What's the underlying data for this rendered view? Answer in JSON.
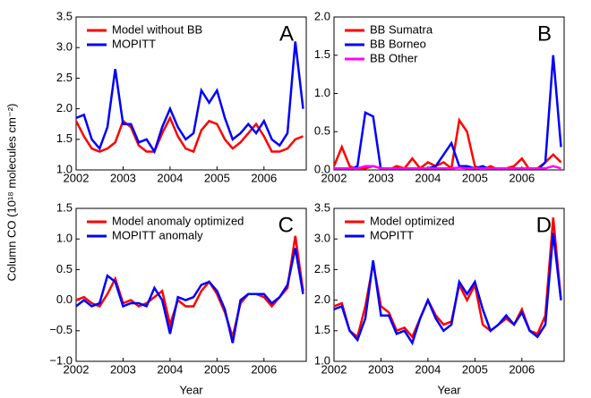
{
  "chart_data": [
    {
      "type": "line",
      "title": "A",
      "ylabel": "Column CO (10¹⁸ molecules cm⁻²)",
      "x": [
        2002,
        2002.167,
        2002.333,
        2002.5,
        2002.667,
        2002.833,
        2003,
        2003.167,
        2003.333,
        2003.5,
        2003.667,
        2003.833,
        2004,
        2004.167,
        2004.333,
        2004.5,
        2004.667,
        2004.833,
        2005,
        2005.167,
        2005.333,
        2005.5,
        2005.667,
        2005.833,
        2006,
        2006.167,
        2006.333,
        2006.5,
        2006.667,
        2006.833
      ],
      "series": [
        {
          "name": "Model without BB",
          "color": "#ff0000",
          "values": [
            1.8,
            1.55,
            1.35,
            1.3,
            1.35,
            1.45,
            1.8,
            1.7,
            1.4,
            1.3,
            1.3,
            1.6,
            1.85,
            1.55,
            1.35,
            1.3,
            1.65,
            1.8,
            1.75,
            1.5,
            1.35,
            1.45,
            1.6,
            1.75,
            1.55,
            1.3,
            1.3,
            1.35,
            1.5,
            1.55
          ]
        },
        {
          "name": "MOPITT",
          "color": "#0000ff",
          "values": [
            1.85,
            1.9,
            1.5,
            1.35,
            1.7,
            2.65,
            1.75,
            1.75,
            1.45,
            1.5,
            1.3,
            1.7,
            2.0,
            1.7,
            1.5,
            1.6,
            2.3,
            2.1,
            2.3,
            1.85,
            1.5,
            1.6,
            1.75,
            1.6,
            1.8,
            1.5,
            1.4,
            1.6,
            3.1,
            2.0
          ]
        }
      ],
      "xlim": [
        2002,
        2006.9
      ],
      "xticks": [
        2002,
        2003,
        2004,
        2005,
        2006
      ],
      "ylim": [
        1,
        3.5
      ],
      "yticks": [
        {
          "value": 1,
          "label": "1.0"
        },
        1.5,
        {
          "value": 2,
          "label": "2.0"
        },
        2.5,
        {
          "value": 3,
          "label": "3.0"
        },
        3.5
      ]
    },
    {
      "type": "line",
      "title": "B",
      "x": [
        2002,
        2002.167,
        2002.333,
        2002.5,
        2002.667,
        2002.833,
        2003,
        2003.167,
        2003.333,
        2003.5,
        2003.667,
        2003.833,
        2004,
        2004.167,
        2004.333,
        2004.5,
        2004.667,
        2004.833,
        2005,
        2005.167,
        2005.333,
        2005.5,
        2005.667,
        2005.833,
        2006,
        2006.167,
        2006.333,
        2006.5,
        2006.667,
        2006.833
      ],
      "series": [
        {
          "name": "BB Sumatra",
          "color": "#ff0000",
          "values": [
            0.05,
            0.3,
            0.05,
            0,
            0.02,
            0.05,
            0.02,
            0,
            0.05,
            0.02,
            0.15,
            0.02,
            0.1,
            0.05,
            0.1,
            0.02,
            0.65,
            0.5,
            0.05,
            0,
            0.05,
            0,
            0.02,
            0.05,
            0.15,
            0,
            0.02,
            0.1,
            0.2,
            0.1
          ]
        },
        {
          "name": "BB Borneo",
          "color": "#0000ff",
          "values": [
            0,
            0,
            0,
            0.05,
            0.75,
            0.7,
            0,
            0,
            0,
            0.02,
            0,
            0.02,
            0.02,
            0.05,
            0.2,
            0.35,
            0.05,
            0.05,
            0.02,
            0.05,
            0,
            0.02,
            0,
            0,
            0.02,
            0,
            0,
            0.1,
            1.5,
            0.3
          ]
        },
        {
          "name": "BB Other",
          "color": "#ff00ff",
          "values": [
            0.02,
            0.02,
            0.02,
            0.02,
            0.05,
            0.05,
            0.02,
            0.02,
            0.02,
            0.02,
            0.02,
            0.02,
            0.02,
            0.02,
            0.02,
            0.02,
            0.03,
            0.02,
            0.02,
            0.02,
            0.02,
            0.02,
            0.02,
            0.02,
            0.02,
            0.02,
            0.02,
            0.02,
            0.05,
            0.02
          ]
        }
      ],
      "xlim": [
        2002,
        2006.9
      ],
      "xticks": [
        2002,
        2003,
        2004,
        2005,
        2006
      ],
      "ylim": [
        0,
        2
      ],
      "yticks": [
        {
          "value": 0,
          "label": "0.0"
        },
        0.5,
        {
          "value": 1,
          "label": "1.0"
        },
        1.5,
        {
          "value": 2,
          "label": "2.0"
        }
      ]
    },
    {
      "type": "line",
      "title": "C",
      "xlabel": "Year",
      "x": [
        2002,
        2002.167,
        2002.333,
        2002.5,
        2002.667,
        2002.833,
        2003,
        2003.167,
        2003.333,
        2003.5,
        2003.667,
        2003.833,
        2004,
        2004.167,
        2004.333,
        2004.5,
        2004.667,
        2004.833,
        2005,
        2005.167,
        2005.333,
        2005.5,
        2005.667,
        2005.833,
        2006,
        2006.167,
        2006.333,
        2006.5,
        2006.667,
        2006.833
      ],
      "series": [
        {
          "name": "Model anomaly optimized",
          "color": "#ff0000",
          "values": [
            0,
            0.05,
            -0.05,
            -0.1,
            0.1,
            0.35,
            -0.05,
            0,
            -0.1,
            -0.05,
            0.05,
            0.15,
            -0.4,
            0,
            -0.1,
            -0.1,
            0.15,
            0.3,
            0.1,
            -0.2,
            -0.6,
            -0.05,
            0.1,
            0.1,
            0.05,
            -0.1,
            0.05,
            0.2,
            1.05,
            0.15
          ]
        },
        {
          "name": "MOPITT anomaly",
          "color": "#0000ff",
          "values": [
            -0.1,
            0,
            -0.1,
            -0.05,
            0.4,
            0.3,
            -0.1,
            -0.05,
            -0.05,
            -0.1,
            0.2,
            0,
            -0.55,
            0.05,
            0,
            0.05,
            0.25,
            0.3,
            0.15,
            -0.15,
            -0.7,
            0,
            0.1,
            0.1,
            0.1,
            -0.05,
            0.05,
            0.25,
            0.85,
            0.1
          ]
        }
      ],
      "xlim": [
        2002,
        2006.9
      ],
      "xticks": [
        2002,
        2003,
        2004,
        2005,
        2006
      ],
      "ylim": [
        -1,
        1.5
      ],
      "yticks": [
        {
          "value": -1,
          "label": "−1.0"
        },
        {
          "value": -0.5,
          "label": "−0.5"
        },
        {
          "value": 0,
          "label": "0.0"
        },
        0.5,
        {
          "value": 1,
          "label": "1.0"
        },
        1.5
      ]
    },
    {
      "type": "line",
      "title": "D",
      "xlabel": "Year",
      "x": [
        2002,
        2002.167,
        2002.333,
        2002.5,
        2002.667,
        2002.833,
        2003,
        2003.167,
        2003.333,
        2003.5,
        2003.667,
        2003.833,
        2004,
        2004.167,
        2004.333,
        2004.5,
        2004.667,
        2004.833,
        2005,
        2005.167,
        2005.333,
        2005.5,
        2005.667,
        2005.833,
        2006,
        2006.167,
        2006.333,
        2006.5,
        2006.667,
        2006.833
      ],
      "series": [
        {
          "name": "Model optimized",
          "color": "#ff0000",
          "values": [
            1.9,
            1.95,
            1.5,
            1.4,
            1.9,
            2.6,
            1.9,
            1.8,
            1.5,
            1.55,
            1.4,
            1.7,
            2.0,
            1.75,
            1.6,
            1.65,
            2.25,
            2.0,
            2.25,
            1.6,
            1.5,
            1.6,
            1.7,
            1.6,
            1.85,
            1.5,
            1.45,
            1.75,
            3.35,
            2.0
          ]
        },
        {
          "name": "MOPITT",
          "color": "#0000ff",
          "values": [
            1.85,
            1.9,
            1.5,
            1.35,
            1.7,
            2.65,
            1.75,
            1.75,
            1.45,
            1.5,
            1.3,
            1.7,
            2.0,
            1.7,
            1.5,
            1.6,
            2.3,
            2.1,
            2.3,
            1.85,
            1.5,
            1.6,
            1.75,
            1.6,
            1.8,
            1.5,
            1.4,
            1.6,
            3.1,
            2.0
          ]
        }
      ],
      "xlim": [
        2002,
        2006.9
      ],
      "xticks": [
        2002,
        2003,
        2004,
        2005,
        2006
      ],
      "ylim": [
        1,
        3.5
      ],
      "yticks": [
        {
          "value": 1,
          "label": "1.0"
        },
        1.5,
        {
          "value": 2,
          "label": "2.0"
        },
        2.5,
        {
          "value": 3,
          "label": "3.0"
        },
        3.5
      ]
    }
  ]
}
